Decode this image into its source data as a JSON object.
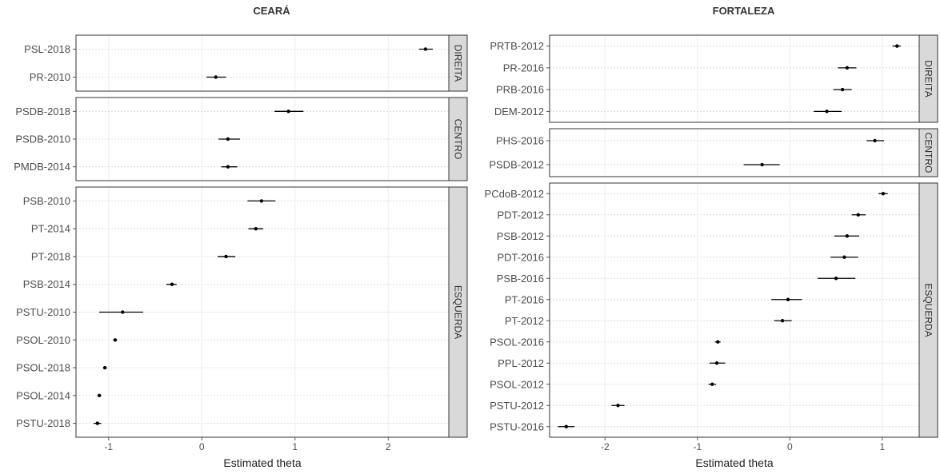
{
  "chart_data": [
    {
      "type": "scatter",
      "title": "CEARÁ",
      "xlabel": "Estimated theta",
      "xlim": [
        -1.35,
        2.65
      ],
      "xticks": [
        -1,
        0,
        1,
        2
      ],
      "xtick_labels": [
        "-1",
        "0",
        "1",
        "2"
      ],
      "point_color": "#000000",
      "errorbars": true,
      "grid": true,
      "panels": [
        {
          "strip": "DIREITA",
          "points": [
            {
              "label": "PSL-2018",
              "value": 2.4,
              "lo": 2.33,
              "hi": 2.48
            },
            {
              "label": "PR-2010",
              "value": 0.15,
              "lo": 0.05,
              "hi": 0.26
            }
          ]
        },
        {
          "strip": "CENTRO",
          "points": [
            {
              "label": "PSDB-2018",
              "value": 0.93,
              "lo": 0.78,
              "hi": 1.09
            },
            {
              "label": "PSDB-2010",
              "value": 0.28,
              "lo": 0.18,
              "hi": 0.41
            },
            {
              "label": "PMDB-2014",
              "value": 0.28,
              "lo": 0.21,
              "hi": 0.38
            }
          ]
        },
        {
          "strip": "ESQUERDA",
          "points": [
            {
              "label": "PSB-2010",
              "value": 0.64,
              "lo": 0.49,
              "hi": 0.79
            },
            {
              "label": "PT-2014",
              "value": 0.58,
              "lo": 0.5,
              "hi": 0.66
            },
            {
              "label": "PT-2018",
              "value": 0.26,
              "lo": 0.17,
              "hi": 0.36
            },
            {
              "label": "PSB-2014",
              "value": -0.32,
              "lo": -0.38,
              "hi": -0.27
            },
            {
              "label": "PSTU-2010",
              "value": -0.85,
              "lo": -1.1,
              "hi": -0.63
            },
            {
              "label": "PSOL-2010",
              "value": -0.93,
              "lo": -0.95,
              "hi": -0.91
            },
            {
              "label": "PSOL-2018",
              "value": -1.04,
              "lo": -1.06,
              "hi": -1.02
            },
            {
              "label": "PSOL-2014",
              "value": -1.1,
              "lo": -1.12,
              "hi": -1.08
            },
            {
              "label": "PSTU-2018",
              "value": -1.12,
              "lo": -1.16,
              "hi": -1.08
            }
          ]
        }
      ]
    },
    {
      "type": "scatter",
      "title": "FORTALEZA",
      "xlabel": "Estimated theta",
      "xlim": [
        -2.6,
        1.4
      ],
      "xticks": [
        -2,
        -1,
        0,
        1
      ],
      "xtick_labels": [
        "-2",
        "-1",
        "0",
        "1"
      ],
      "point_color": "#000000",
      "errorbars": true,
      "grid": true,
      "panels": [
        {
          "strip": "DIREITA",
          "points": [
            {
              "label": "PRTB-2012",
              "value": 1.16,
              "lo": 1.11,
              "hi": 1.2
            },
            {
              "label": "PR-2016",
              "value": 0.62,
              "lo": 0.52,
              "hi": 0.72
            },
            {
              "label": "PRB-2016",
              "value": 0.57,
              "lo": 0.47,
              "hi": 0.67
            },
            {
              "label": "DEM-2012",
              "value": 0.4,
              "lo": 0.26,
              "hi": 0.56
            }
          ]
        },
        {
          "strip": "CENTRO",
          "points": [
            {
              "label": "PHS-2016",
              "value": 0.92,
              "lo": 0.83,
              "hi": 1.02
            },
            {
              "label": "PSDB-2012",
              "value": -0.3,
              "lo": -0.5,
              "hi": -0.11
            }
          ]
        },
        {
          "strip": "ESQUERDA",
          "points": [
            {
              "label": "PCdoB-2012",
              "value": 1.01,
              "lo": 0.96,
              "hi": 1.06
            },
            {
              "label": "PDT-2012",
              "value": 0.74,
              "lo": 0.67,
              "hi": 0.82
            },
            {
              "label": "PSB-2012",
              "value": 0.62,
              "lo": 0.48,
              "hi": 0.75
            },
            {
              "label": "PDT-2016",
              "value": 0.59,
              "lo": 0.44,
              "hi": 0.74
            },
            {
              "label": "PSB-2016",
              "value": 0.5,
              "lo": 0.3,
              "hi": 0.71
            },
            {
              "label": "PT-2016",
              "value": -0.02,
              "lo": -0.2,
              "hi": 0.13
            },
            {
              "label": "PT-2012",
              "value": -0.08,
              "lo": -0.17,
              "hi": 0.02
            },
            {
              "label": "PSOL-2016",
              "value": -0.78,
              "lo": -0.81,
              "hi": -0.75
            },
            {
              "label": "PPL-2012",
              "value": -0.79,
              "lo": -0.87,
              "hi": -0.7
            },
            {
              "label": "PSOL-2012",
              "value": -0.84,
              "lo": -0.88,
              "hi": -0.8
            },
            {
              "label": "PSTU-2012",
              "value": -1.86,
              "lo": -1.93,
              "hi": -1.79
            },
            {
              "label": "PSTU-2016",
              "value": -2.42,
              "lo": -2.51,
              "hi": -2.33
            }
          ]
        }
      ]
    }
  ]
}
